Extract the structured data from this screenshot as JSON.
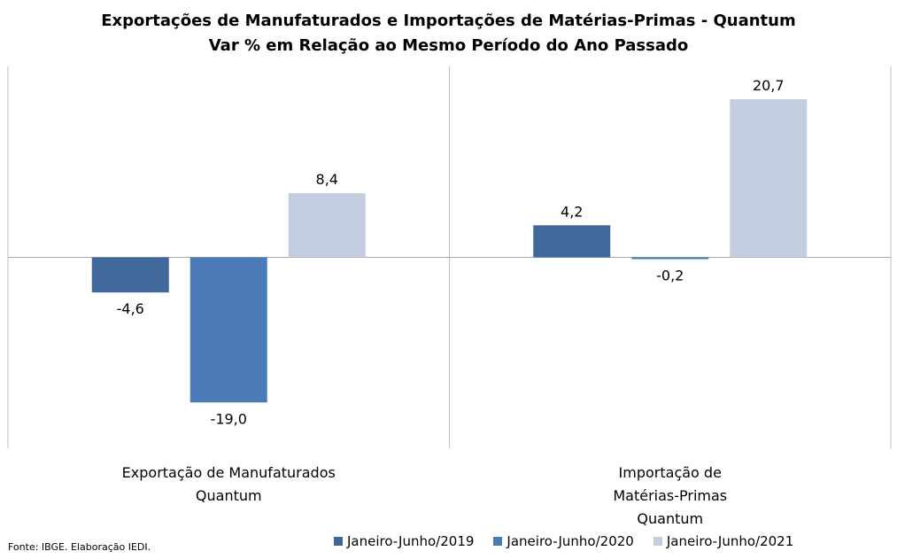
{
  "chart_data": {
    "type": "bar",
    "title": "Exportações de Manufaturados e Importações de Matérias-Primas - Quantum",
    "subtitle": "Var % em Relação ao Mesmo Período do Ano Passado",
    "categories": [
      [
        "Exportação de Manufaturados",
        "Quantum"
      ],
      [
        "Importação de",
        "Matérias-Primas",
        "Quantum"
      ]
    ],
    "series": [
      {
        "name": "Janeiro-Junho/2019",
        "color": "#41689A",
        "values": [
          -4.6,
          4.2
        ],
        "labels": [
          "-4,6",
          "4,2"
        ]
      },
      {
        "name": "Janeiro-Junho/2020",
        "color": "#4A7BB7",
        "values": [
          -19.0,
          -0.2
        ],
        "labels": [
          "-19,0",
          "-0,2"
        ]
      },
      {
        "name": "Janeiro-Junho/2021",
        "color": "#C3CDE0",
        "values": [
          8.4,
          20.7
        ],
        "labels": [
          "8,4",
          "20,7"
        ]
      }
    ],
    "ylim": [
      -25,
      25
    ],
    "grid": false,
    "legend_position": "bottom"
  },
  "source": "Fonte: IBGE. Elaboração IEDI."
}
